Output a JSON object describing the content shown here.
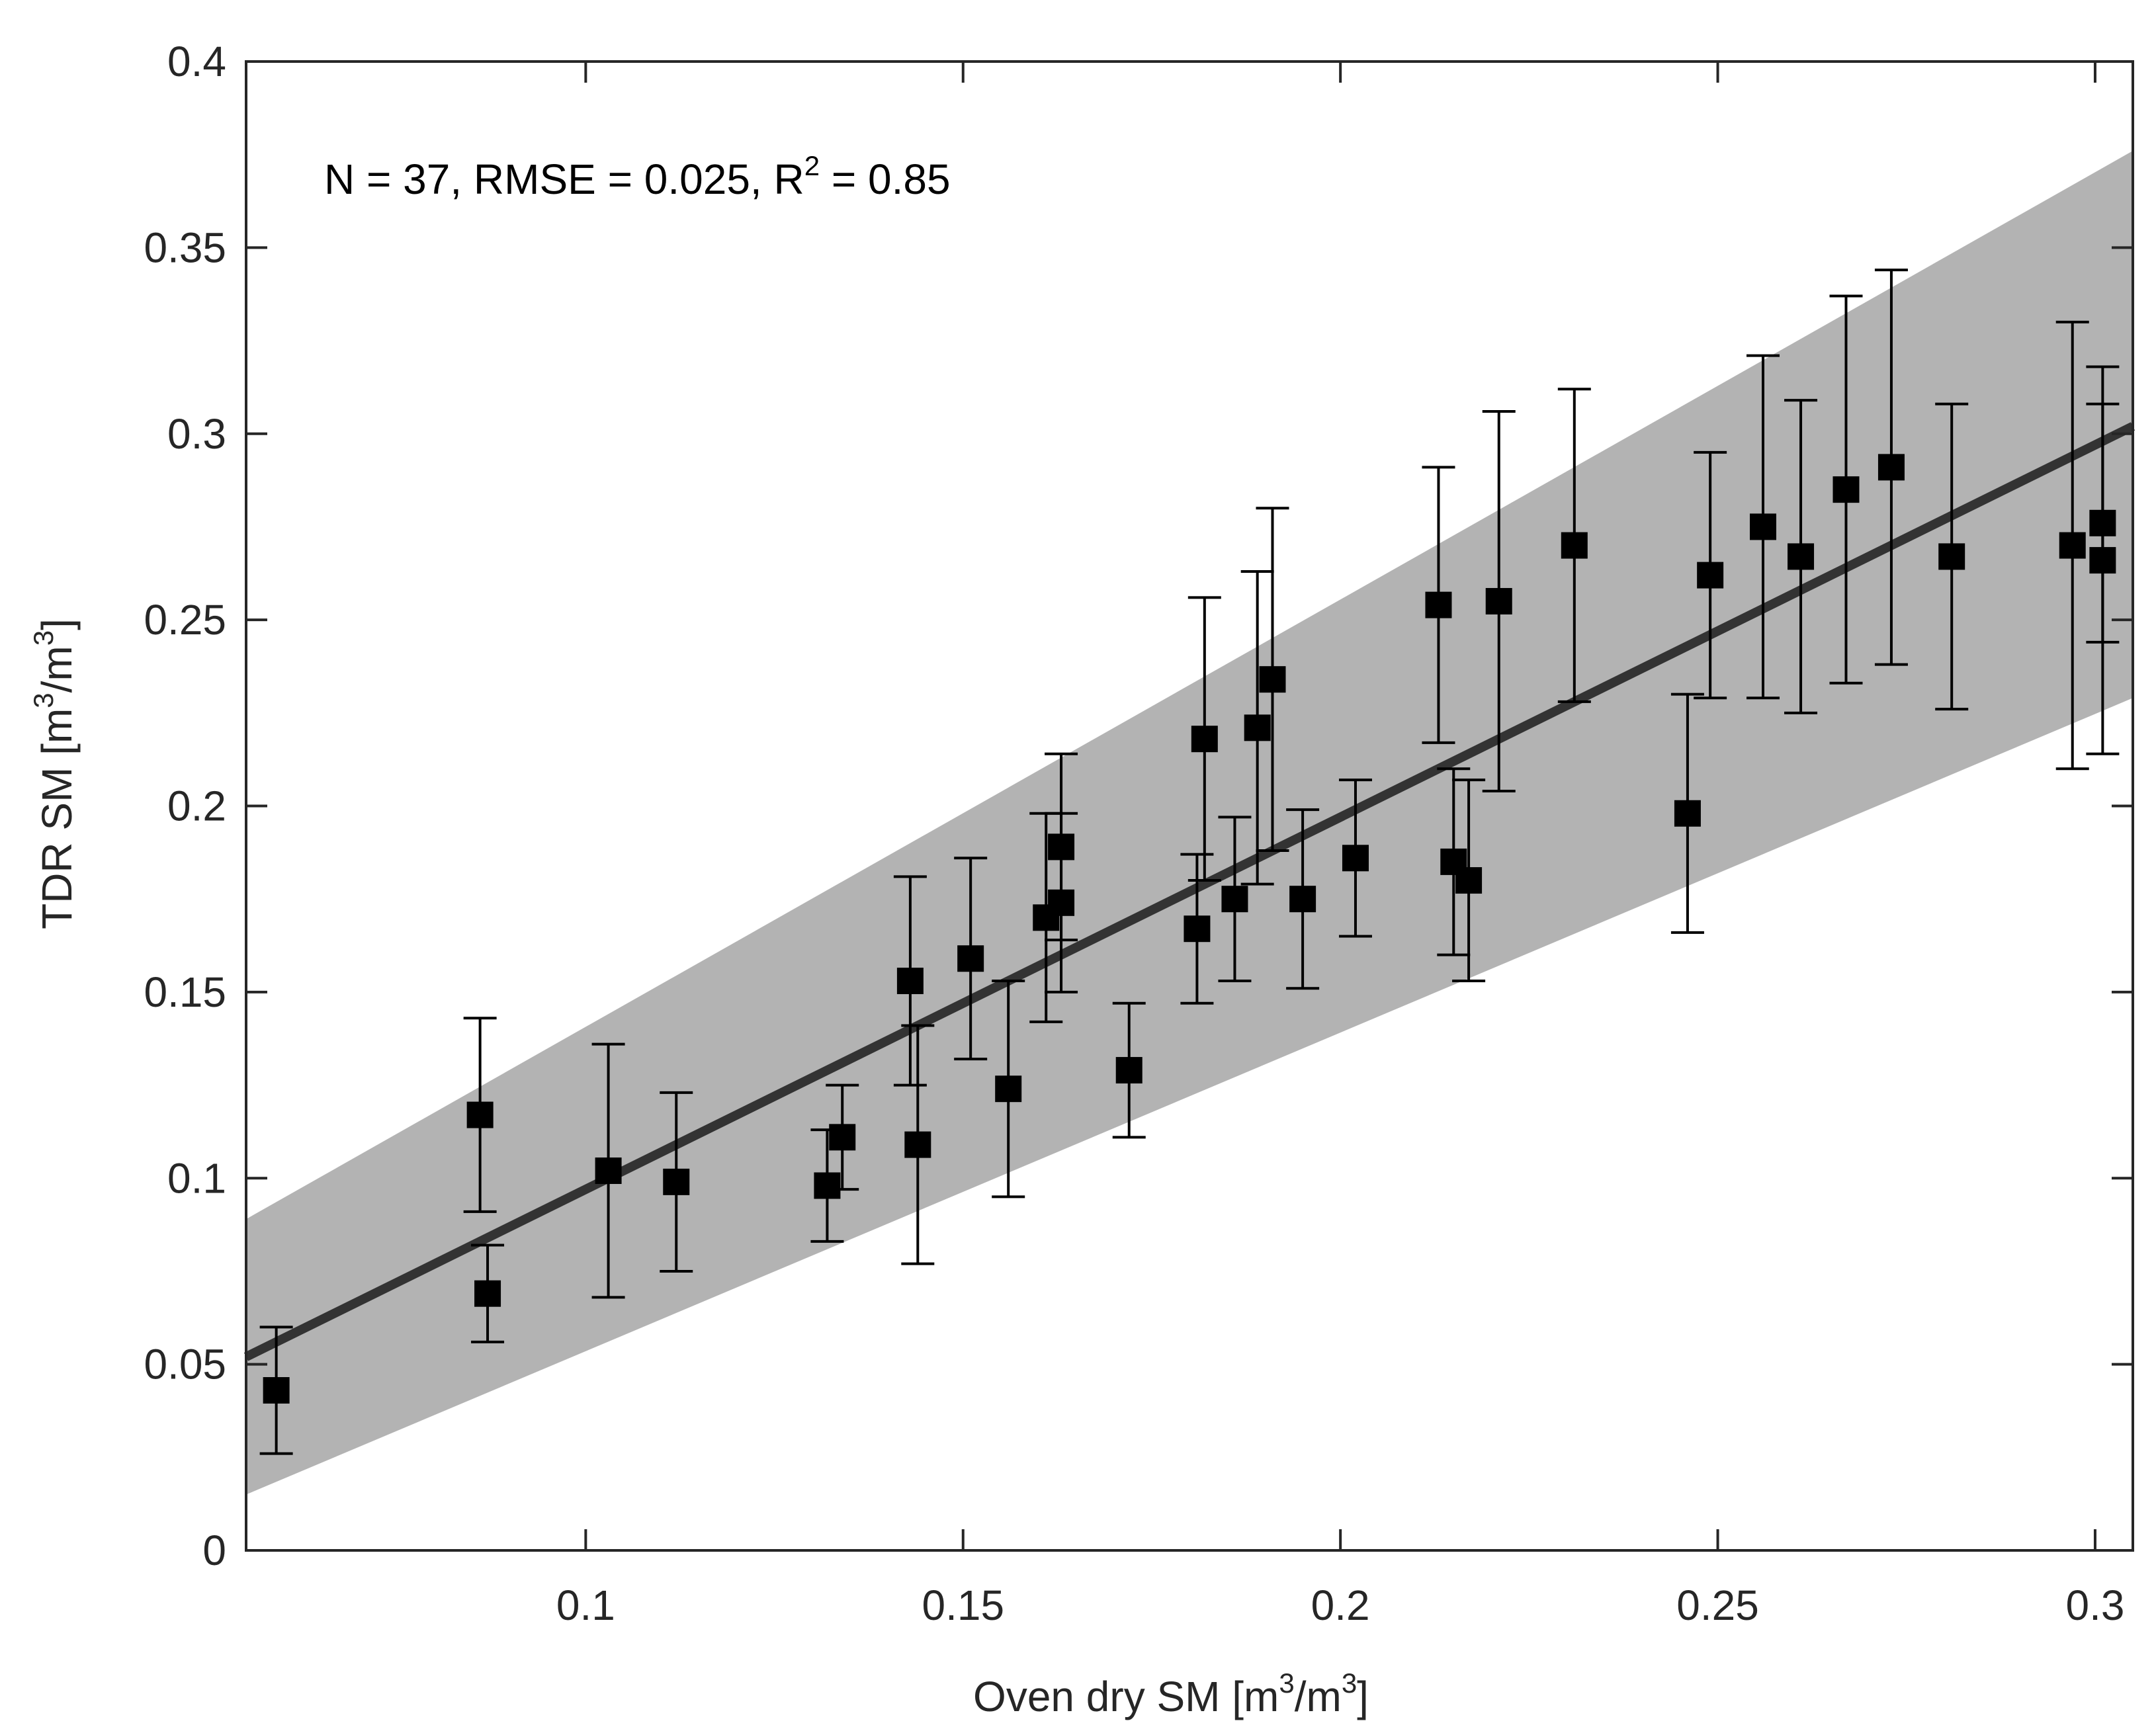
{
  "chart_data": {
    "type": "scatter",
    "title": "",
    "xlabel": {
      "main": "Oven dry SM [m",
      "sup1": "3",
      "mid": "/m",
      "sup2": "3",
      "end": "]"
    },
    "ylabel": {
      "main": "TDR SM [m",
      "sup1": "3",
      "mid": "/m",
      "sup2": "3",
      "end": "]"
    },
    "xlim": [
      0.055,
      0.305
    ],
    "ylim": [
      0,
      0.4
    ],
    "x_ticks": [
      0.1,
      0.15,
      0.2,
      0.25,
      0.3
    ],
    "x_tick_labels": [
      "0.1",
      "0.15",
      "0.2",
      "0.25",
      "0.3"
    ],
    "y_ticks": [
      0,
      0.05,
      0.1,
      0.15,
      0.2,
      0.25,
      0.3,
      0.35,
      0.4
    ],
    "y_tick_labels": [
      "0",
      "0.05",
      "0.1",
      "0.15",
      "0.2",
      "0.25",
      "0.3",
      "0.35",
      "0.4"
    ],
    "annotation": {
      "prefix": "N = 37, RMSE = 0.025, R",
      "sup": "2",
      "suffix": " = 0.85"
    },
    "grid": false,
    "fit_line": {
      "x": [
        0.055,
        0.305
      ],
      "y": [
        0.052,
        0.302
      ],
      "color": "#333333"
    },
    "confidence_band": {
      "upper": {
        "x": [
          0.055,
          0.305
        ],
        "y": [
          0.089,
          0.376
        ]
      },
      "lower": {
        "x": [
          0.055,
          0.305
        ],
        "y": [
          0.015,
          0.229
        ]
      },
      "color": "#b3b3b3"
    },
    "marker_color": "#000000",
    "points": [
      {
        "x": 0.059,
        "y": 0.043,
        "lo": 0.026,
        "hi": 0.06
      },
      {
        "x": 0.086,
        "y": 0.117,
        "lo": 0.091,
        "hi": 0.143
      },
      {
        "x": 0.087,
        "y": 0.069,
        "lo": 0.056,
        "hi": 0.082
      },
      {
        "x": 0.103,
        "y": 0.102,
        "lo": 0.068,
        "hi": 0.136
      },
      {
        "x": 0.112,
        "y": 0.099,
        "lo": 0.075,
        "hi": 0.123
      },
      {
        "x": 0.132,
        "y": 0.098,
        "lo": 0.083,
        "hi": 0.113
      },
      {
        "x": 0.134,
        "y": 0.111,
        "lo": 0.097,
        "hi": 0.125
      },
      {
        "x": 0.143,
        "y": 0.153,
        "lo": 0.125,
        "hi": 0.181
      },
      {
        "x": 0.144,
        "y": 0.109,
        "lo": 0.077,
        "hi": 0.141
      },
      {
        "x": 0.151,
        "y": 0.159,
        "lo": 0.132,
        "hi": 0.186
      },
      {
        "x": 0.156,
        "y": 0.124,
        "lo": 0.095,
        "hi": 0.153
      },
      {
        "x": 0.161,
        "y": 0.17,
        "lo": 0.142,
        "hi": 0.198
      },
      {
        "x": 0.163,
        "y": 0.189,
        "lo": 0.164,
        "hi": 0.214
      },
      {
        "x": 0.163,
        "y": 0.174,
        "lo": 0.15,
        "hi": 0.198
      },
      {
        "x": 0.172,
        "y": 0.129,
        "lo": 0.111,
        "hi": 0.147
      },
      {
        "x": 0.181,
        "y": 0.167,
        "lo": 0.147,
        "hi": 0.187
      },
      {
        "x": 0.182,
        "y": 0.218,
        "lo": 0.18,
        "hi": 0.256
      },
      {
        "x": 0.186,
        "y": 0.175,
        "lo": 0.153,
        "hi": 0.197
      },
      {
        "x": 0.189,
        "y": 0.221,
        "lo": 0.179,
        "hi": 0.263
      },
      {
        "x": 0.191,
        "y": 0.234,
        "lo": 0.188,
        "hi": 0.28
      },
      {
        "x": 0.195,
        "y": 0.175,
        "lo": 0.151,
        "hi": 0.199
      },
      {
        "x": 0.202,
        "y": 0.186,
        "lo": 0.165,
        "hi": 0.207
      },
      {
        "x": 0.213,
        "y": 0.254,
        "lo": 0.217,
        "hi": 0.291
      },
      {
        "x": 0.215,
        "y": 0.185,
        "lo": 0.16,
        "hi": 0.21
      },
      {
        "x": 0.217,
        "y": 0.18,
        "lo": 0.153,
        "hi": 0.207
      },
      {
        "x": 0.221,
        "y": 0.255,
        "lo": 0.204,
        "hi": 0.306
      },
      {
        "x": 0.231,
        "y": 0.27,
        "lo": 0.228,
        "hi": 0.312
      },
      {
        "x": 0.246,
        "y": 0.198,
        "lo": 0.166,
        "hi": 0.23
      },
      {
        "x": 0.249,
        "y": 0.262,
        "lo": 0.229,
        "hi": 0.295
      },
      {
        "x": 0.256,
        "y": 0.275,
        "lo": 0.229,
        "hi": 0.321
      },
      {
        "x": 0.261,
        "y": 0.267,
        "lo": 0.225,
        "hi": 0.309
      },
      {
        "x": 0.267,
        "y": 0.285,
        "lo": 0.233,
        "hi": 0.337
      },
      {
        "x": 0.273,
        "y": 0.291,
        "lo": 0.238,
        "hi": 0.344
      },
      {
        "x": 0.281,
        "y": 0.267,
        "lo": 0.226,
        "hi": 0.308
      },
      {
        "x": 0.297,
        "y": 0.27,
        "lo": 0.21,
        "hi": 0.33
      },
      {
        "x": 0.301,
        "y": 0.276,
        "lo": 0.244,
        "hi": 0.308
      },
      {
        "x": 0.301,
        "y": 0.266,
        "lo": 0.214,
        "hi": 0.318
      }
    ]
  }
}
